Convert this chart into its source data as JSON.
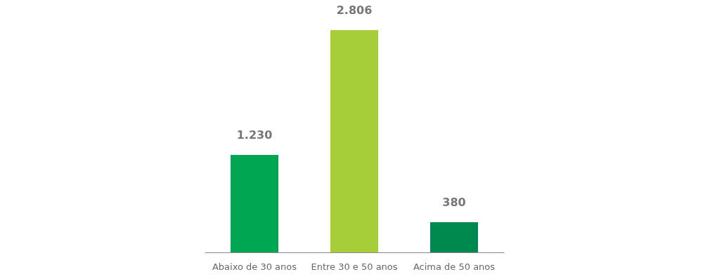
{
  "chart_data": {
    "type": "bar",
    "categories": [
      "Abaixo de 30 anos",
      "Entre 30 e 50 anos",
      "Acima de 50 anos"
    ],
    "values": [
      1230,
      2806,
      380
    ],
    "colors": [
      "#00a651",
      "#a6ce39",
      "#00894f"
    ],
    "value_labels": [
      "1.230",
      "2.806",
      "380"
    ],
    "grid": false,
    "legend": false
  }
}
